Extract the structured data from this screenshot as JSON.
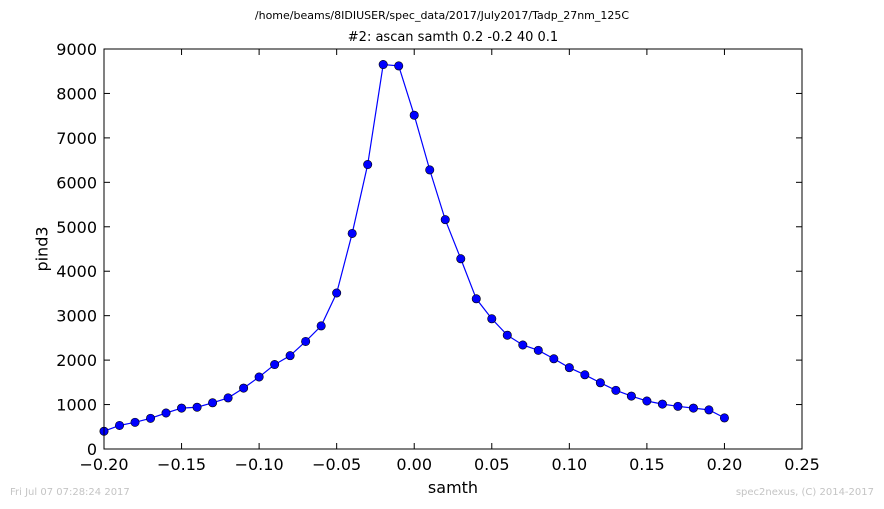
{
  "header": {
    "filepath": "/home/beams/8IDIUSER/spec_data/2017/July2017/Tadp_27nm_125C"
  },
  "footer": {
    "timestamp": "Fri Jul 07 07:28:24 2017",
    "credit": "spec2nexus, (C) 2014-2017"
  },
  "chart_data": {
    "type": "line",
    "title": "#2: ascan  samth 0.2 -0.2  40 0.1",
    "xlabel": "samth",
    "ylabel": "pind3",
    "xlim": [
      -0.2,
      0.25
    ],
    "ylim": [
      0,
      9000
    ],
    "xticks": [
      -0.2,
      -0.15,
      -0.1,
      -0.05,
      0.0,
      0.05,
      0.1,
      0.15,
      0.2,
      0.25
    ],
    "xtick_labels": [
      "−0.20",
      "−0.15",
      "−0.10",
      "−0.05",
      "0.00",
      "0.05",
      "0.10",
      "0.15",
      "0.20",
      "0.25"
    ],
    "yticks": [
      0,
      1000,
      2000,
      3000,
      4000,
      5000,
      6000,
      7000,
      8000,
      9000
    ],
    "ytick_labels": [
      "0",
      "1000",
      "2000",
      "3000",
      "4000",
      "5000",
      "6000",
      "7000",
      "8000",
      "9000"
    ],
    "grid": false,
    "series": [
      {
        "color": "#0000ff",
        "marker": "circle",
        "x": [
          -0.2,
          -0.19,
          -0.18,
          -0.17,
          -0.16,
          -0.15,
          -0.14,
          -0.13,
          -0.12,
          -0.11,
          -0.1,
          -0.09,
          -0.08,
          -0.07,
          -0.06,
          -0.05,
          -0.04,
          -0.03,
          -0.02,
          -0.01,
          0.0,
          0.01,
          0.02,
          0.03,
          0.04,
          0.05,
          0.06,
          0.07,
          0.08,
          0.09,
          0.1,
          0.11,
          0.12,
          0.13,
          0.14,
          0.15,
          0.16,
          0.17,
          0.18,
          0.19,
          0.2
        ],
        "y": [
          400,
          530,
          600,
          690,
          810,
          920,
          940,
          1040,
          1150,
          1370,
          1620,
          1900,
          2100,
          2420,
          2770,
          3510,
          4850,
          6400,
          8650,
          8620,
          7510,
          6280,
          5160,
          4280,
          3380,
          2930,
          2560,
          2340,
          2220,
          2030,
          1830,
          1670,
          1490,
          1320,
          1190,
          1080,
          1010,
          960,
          920,
          880,
          700
        ]
      }
    ]
  }
}
